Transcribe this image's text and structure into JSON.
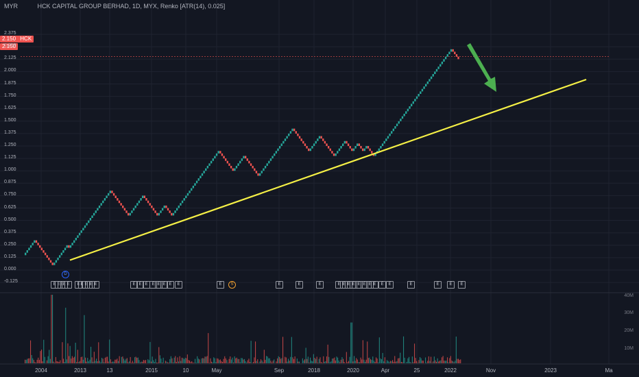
{
  "header": {
    "currency": "MYR",
    "title": "HCK CAPITAL GROUP BERHAD, 1D, MYX, Renko [ATR(14), 0.025]"
  },
  "price_badges": {
    "symbol_label": "HCK",
    "price_top": "2.150",
    "price_bottom": "2.150"
  },
  "y_axis": {
    "ticks": [
      "2.375",
      "2.250",
      "2.125",
      "2.000",
      "1.875",
      "1.750",
      "1.625",
      "1.500",
      "1.375",
      "1.250",
      "1.125",
      "1.000",
      "0.875",
      "0.750",
      "0.625",
      "0.500",
      "0.375",
      "0.250",
      "0.125",
      "0.000",
      "-0.125"
    ]
  },
  "x_axis": {
    "ticks": [
      "2004",
      "2013",
      "13",
      "2015",
      "10",
      "May",
      "Sep",
      "2018",
      "2020",
      "Apr",
      "25",
      "2022",
      "Nov",
      "2023",
      "Ma"
    ]
  },
  "volume_axis": {
    "ticks": [
      "40M",
      "30M",
      "20M",
      "10M"
    ]
  },
  "events": {
    "dividend_marker": "D",
    "split_marker": "S",
    "earnings_label": "E"
  },
  "colors": {
    "background": "#131722",
    "up_brick": "#26a69a",
    "down_brick": "#ef5350",
    "trendline": "#f5f046",
    "arrow": "#4caf50",
    "grid": "#1f2330"
  },
  "chart_data": {
    "type": "renko",
    "symbol": "HCK",
    "exchange": "MYX",
    "interval": "1D",
    "brick_size": 0.025,
    "last_price": 2.15,
    "ylim": [
      -0.125,
      2.375
    ],
    "price_path_pivots": [
      0.15,
      0.3,
      0.05,
      0.1,
      0.25,
      0.22,
      0.8,
      0.55,
      0.75,
      0.55,
      0.65,
      0.55,
      1.2,
      1.0,
      1.15,
      0.95,
      1.43,
      1.2,
      1.35,
      1.15,
      1.3,
      1.2,
      1.28,
      1.2,
      1.25,
      1.15,
      1.25,
      1.25,
      2.23,
      2.13
    ],
    "trendline": {
      "from_price": 0.1,
      "to_price": 1.92,
      "color": "yellow"
    },
    "annotation": "green arrow pointing down toward trendline",
    "volume_max_M": 37
  }
}
